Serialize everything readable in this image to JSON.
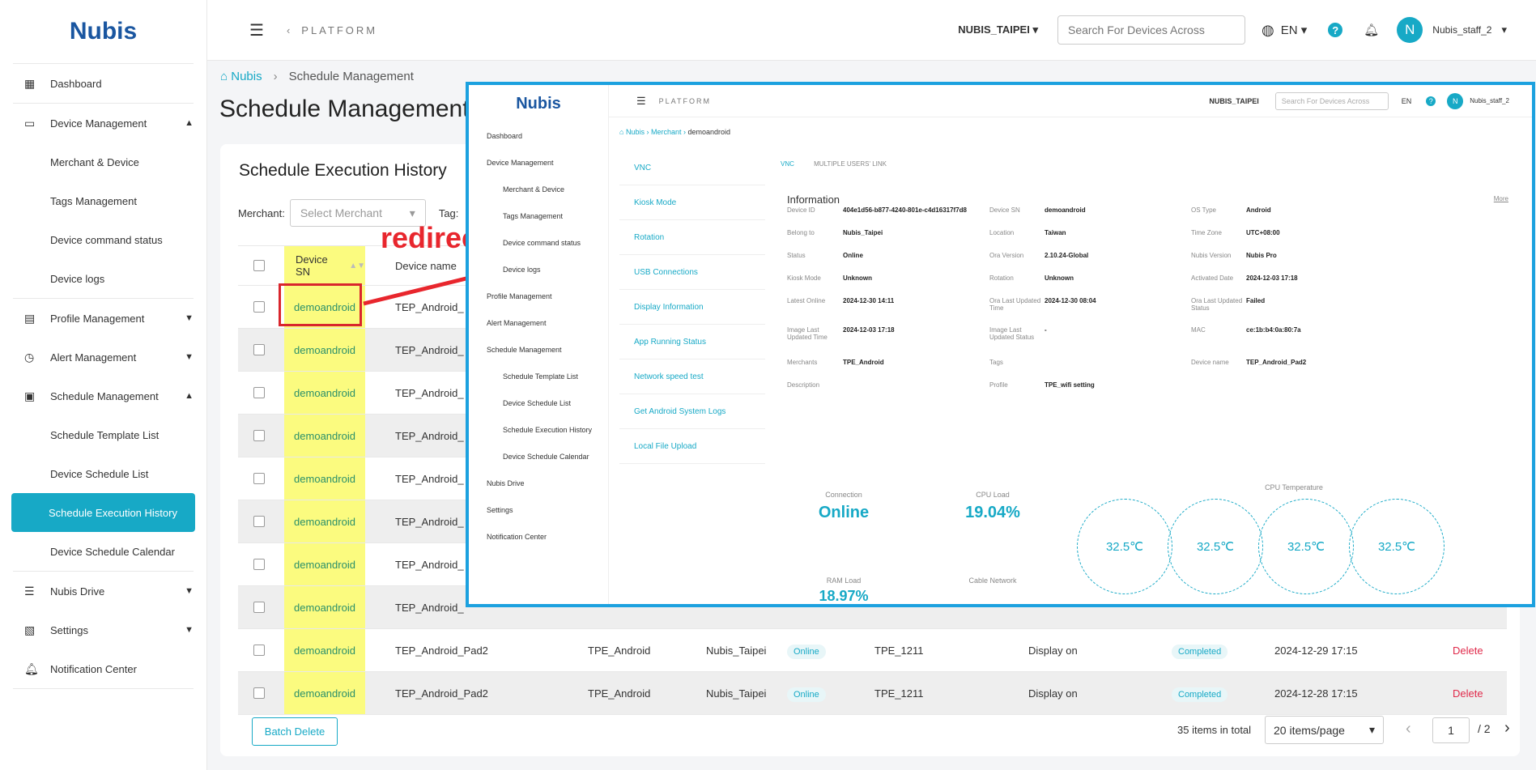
{
  "sidebar": {
    "logo": "Nubis",
    "items": [
      {
        "label": "Dashboard",
        "icon": "dashboard-icon"
      },
      {
        "label": "Device Management",
        "icon": "device-icon"
      },
      {
        "label": "Merchant & Device"
      },
      {
        "label": "Tags Management"
      },
      {
        "label": "Device command status"
      },
      {
        "label": "Device logs"
      },
      {
        "label": "Profile Management",
        "icon": "profile-icon"
      },
      {
        "label": "Alert Management",
        "icon": "alarm-icon"
      },
      {
        "label": "Schedule Management",
        "icon": "calendar-icon"
      },
      {
        "label": "Schedule Template List"
      },
      {
        "label": "Device Schedule List"
      },
      {
        "label": "Schedule Execution History"
      },
      {
        "label": "Device Schedule Calendar"
      },
      {
        "label": "Nubis Drive",
        "icon": "drive-icon"
      },
      {
        "label": "Settings",
        "icon": "settings-icon"
      },
      {
        "label": "Notification Center",
        "icon": "bell-icon"
      }
    ]
  },
  "header": {
    "platform": "PLATFORM",
    "merchant": "NUBIS_TAIPEI",
    "search_placeholder": "Search For Devices Across",
    "lang": "EN",
    "user": "Nubis_staff_2",
    "avatar": "N"
  },
  "breadcrumb": {
    "home": "Nubis",
    "current": "Schedule Management"
  },
  "page_title": "Schedule Management",
  "card_title": "Schedule Execution History",
  "filter": {
    "merchant_label": "Merchant:",
    "merchant_placeholder": "Select Merchant",
    "tag_label": "Tag:"
  },
  "table": {
    "headers": {
      "sn": "Device SN",
      "name": "Device name"
    },
    "rows": [
      {
        "sn": "demoandroid",
        "name": "TEP_Android_"
      },
      {
        "sn": "demoandroid",
        "name": "TEP_Android_"
      },
      {
        "sn": "demoandroid",
        "name": "TEP_Android_"
      },
      {
        "sn": "demoandroid",
        "name": "TEP_Android_"
      },
      {
        "sn": "demoandroid",
        "name": "TEP_Android_"
      },
      {
        "sn": "demoandroid",
        "name": "TEP_Android_"
      },
      {
        "sn": "demoandroid",
        "name": "TEP_Android_"
      },
      {
        "sn": "demoandroid",
        "name": "TEP_Android_"
      },
      {
        "sn": "demoandroid",
        "name": "TEP_Android_Pad2",
        "merchant": "TPE_Android",
        "belong": "Nubis_Taipei",
        "status": "Online",
        "tag": "TPE_1211",
        "command": "Display on",
        "result": "Completed",
        "time": "2024-12-29 17:15",
        "action": "Delete"
      },
      {
        "sn": "demoandroid",
        "name": "TEP_Android_Pad2",
        "merchant": "TPE_Android",
        "belong": "Nubis_Taipei",
        "status": "Online",
        "tag": "TPE_1211",
        "command": "Display on",
        "result": "Completed",
        "time": "2024-12-28 17:15",
        "action": "Delete"
      }
    ]
  },
  "footer": {
    "batch_delete": "Batch Delete",
    "total": "35 items in total",
    "page_size": "20 items/page",
    "page": "1",
    "pages": "/ 2"
  },
  "annotation": "redirect to",
  "overlay": {
    "sidebar": [
      "Dashboard",
      "Device Management",
      "Merchant & Device",
      "Tags Management",
      "Device command status",
      "Device logs",
      "Profile Management",
      "Alert Management",
      "Schedule Management",
      "Schedule Template List",
      "Device Schedule List",
      "Schedule Execution History",
      "Device Schedule Calendar",
      "Nubis Drive",
      "Settings",
      "Notification Center"
    ],
    "breadcrumb": [
      "Nubis",
      "Merchant",
      "demoandroid"
    ],
    "vnc": "VNC",
    "multi": "MULTIPLE USERS' LINK",
    "menu": [
      "VNC",
      "Kiosk Mode",
      "Rotation",
      "USB Connections",
      "Display Information",
      "App Running Status",
      "Network speed test",
      "Get Android System Logs",
      "Local File Upload"
    ],
    "info_title": "Information",
    "more": "More",
    "fields": [
      [
        "Device ID",
        "404e1d56-b877-4240-801e-c4d16317f7d8",
        "Device SN",
        "demoandroid",
        "OS Type",
        "Android"
      ],
      [
        "Belong to",
        "Nubis_Taipei",
        "Location",
        "Taiwan",
        "Time Zone",
        "UTC+08:00"
      ],
      [
        "Status",
        "Online",
        "Ora Version",
        "2.10.24-Global",
        "Nubis Version",
        "Nubis Pro"
      ],
      [
        "Kiosk Mode",
        "Unknown",
        "Rotation",
        "Unknown",
        "Activated Date",
        "2024-12-03 17:18"
      ],
      [
        "Latest Online",
        "2024-12-30 14:11",
        "Ora Last Updated Time",
        "2024-12-30 08:04",
        "Ora Last Updated Status",
        "Failed"
      ],
      [
        "Image Last Updated Time",
        "2024-12-03 17:18",
        "Image Last Updated Status",
        "-",
        "MAC",
        "ce:1b:b4:0a:80:7a"
      ],
      [
        "Merchants",
        "TPE_Android",
        "Tags",
        "",
        "Device name",
        "TEP_Android_Pad2"
      ],
      [
        "Description",
        "",
        "Profile",
        "TPE_wifi setting",
        "",
        ""
      ]
    ],
    "connection_label": "Connection",
    "connection": "Online",
    "cpu_label": "CPU Load",
    "cpu": "19.04%",
    "temp_label": "CPU Temperature",
    "temps": [
      "32.5℃",
      "32.5℃",
      "32.5℃",
      "32.5℃"
    ],
    "ram_label": "RAM Load",
    "ram": "18.97%",
    "cable_label": "Cable Network"
  }
}
